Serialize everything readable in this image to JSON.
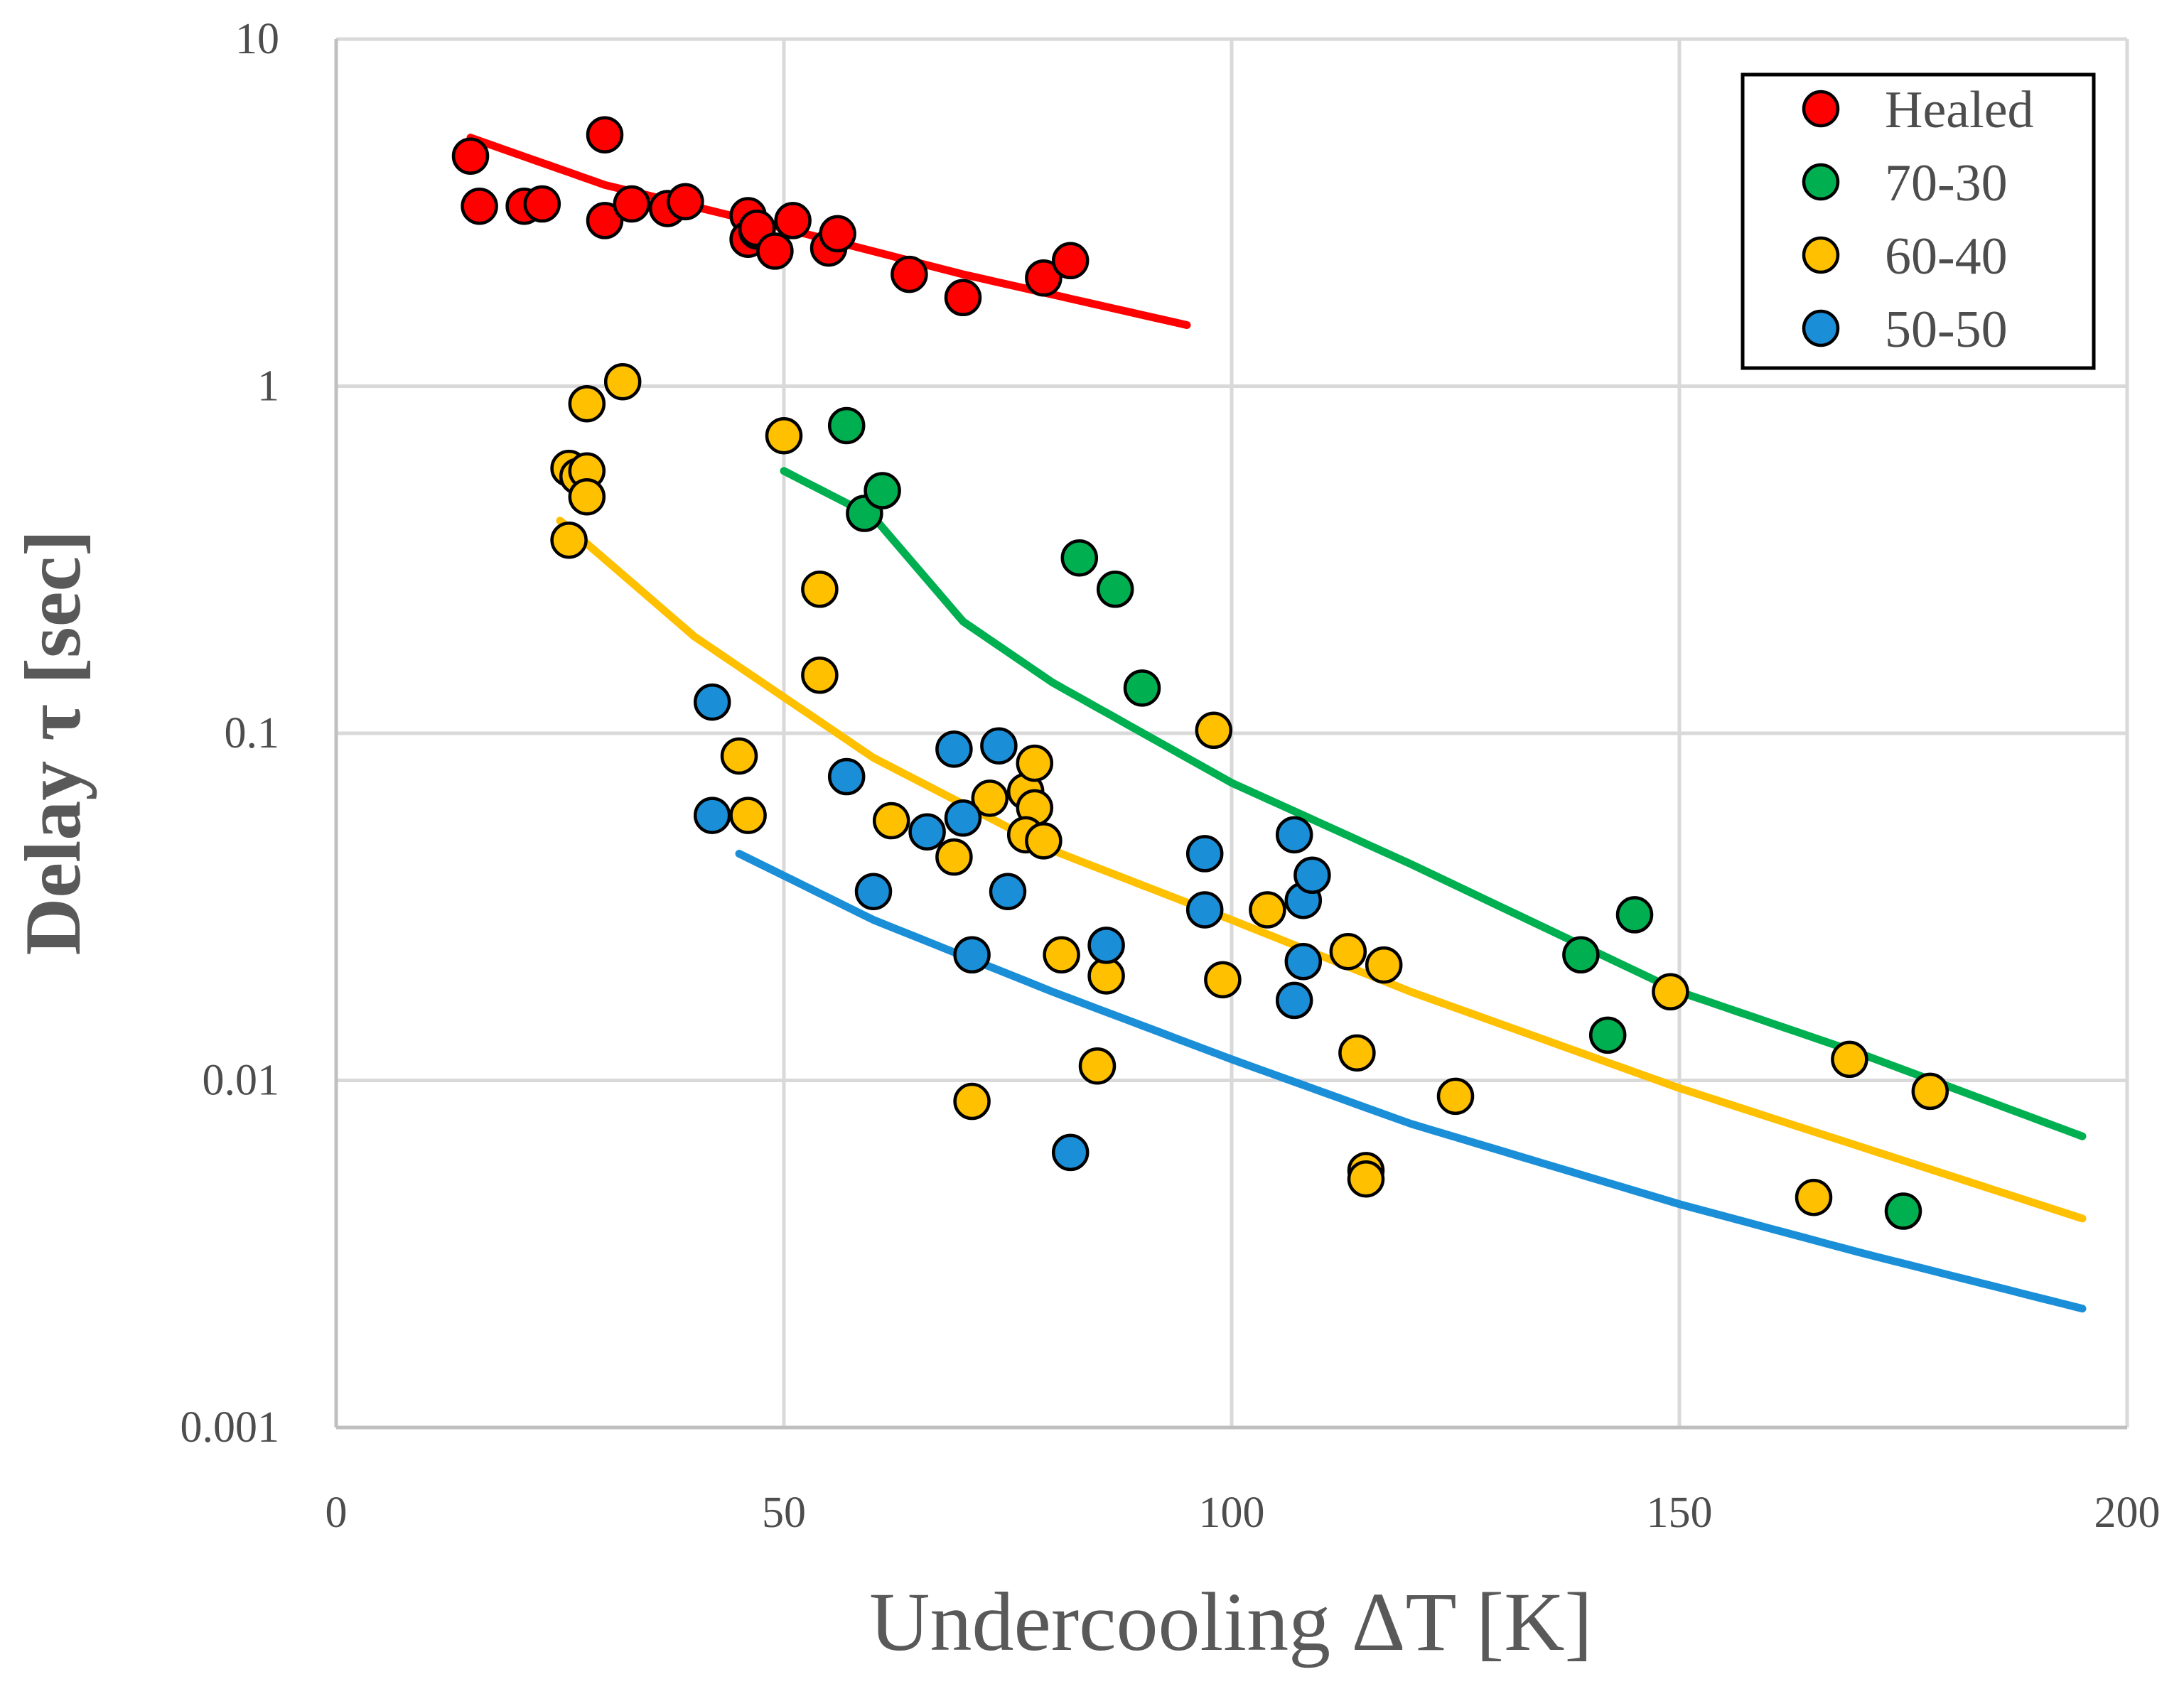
{
  "chart_data": {
    "type": "scatter",
    "title": "",
    "xlabel": "Undercooling ΔT [K]",
    "ylabel": "Delay τ [sec]",
    "xlim": [
      0,
      200
    ],
    "ylim": [
      0.001,
      10
    ],
    "yscale": "log",
    "grid": true,
    "legend_position": "top-right",
    "x_ticks": [
      {
        "value": 0,
        "label": "0"
      },
      {
        "value": 50,
        "label": "50"
      },
      {
        "value": 100,
        "label": "100"
      },
      {
        "value": 150,
        "label": "150"
      },
      {
        "value": 200,
        "label": "200"
      }
    ],
    "y_ticks": [
      {
        "value": 10,
        "label": "10"
      },
      {
        "value": 1,
        "label": "1"
      },
      {
        "value": 0.1,
        "label": "0.1"
      },
      {
        "value": 0.01,
        "label": "0.01"
      },
      {
        "value": 0.001,
        "label": "0.001"
      }
    ],
    "series": [
      {
        "name": "Healed",
        "color": "#ff0000",
        "points": [
          [
            15,
            4.6
          ],
          [
            16,
            3.3
          ],
          [
            21,
            3.3
          ],
          [
            23,
            3.35
          ],
          [
            30,
            5.3
          ],
          [
            30,
            3.0
          ],
          [
            33,
            3.35
          ],
          [
            37,
            3.25
          ],
          [
            39,
            3.4
          ],
          [
            46,
            3.1
          ],
          [
            46,
            2.65
          ],
          [
            47,
            2.8
          ],
          [
            47,
            2.85
          ],
          [
            49,
            2.45
          ],
          [
            51,
            3.0
          ],
          [
            55,
            2.5
          ],
          [
            56,
            2.75
          ],
          [
            64,
            2.1
          ],
          [
            70,
            1.8
          ],
          [
            79,
            2.05
          ],
          [
            82,
            2.3
          ]
        ],
        "fit": [
          [
            15,
            5.2
          ],
          [
            30,
            3.8
          ],
          [
            50,
            2.85
          ],
          [
            70,
            2.1
          ],
          [
            95,
            1.5
          ]
        ]
      },
      {
        "name": "70-30",
        "color": "#00b050",
        "points": [
          [
            57,
            0.77
          ],
          [
            59,
            0.43
          ],
          [
            61,
            0.5
          ],
          [
            83,
            0.32
          ],
          [
            87,
            0.26
          ],
          [
            90,
            0.135
          ],
          [
            139,
            0.023
          ],
          [
            142,
            0.0135
          ],
          [
            145,
            0.03
          ],
          [
            175,
            0.0042
          ]
        ],
        "fit": [
          [
            50,
            0.57
          ],
          [
            60,
            0.42
          ],
          [
            70,
            0.21
          ],
          [
            80,
            0.14
          ],
          [
            100,
            0.072
          ],
          [
            120,
            0.042
          ],
          [
            150,
            0.018
          ],
          [
            170,
            0.012
          ],
          [
            195,
            0.0069
          ]
        ]
      },
      {
        "name": "60-40",
        "color": "#ffc000",
        "points": [
          [
            26,
            0.58
          ],
          [
            27,
            0.55
          ],
          [
            28,
            0.57
          ],
          [
            28,
            0.89
          ],
          [
            28,
            0.48
          ],
          [
            26,
            0.36
          ],
          [
            32,
            1.03
          ],
          [
            50,
            0.72
          ],
          [
            54,
            0.26
          ],
          [
            54,
            0.147
          ],
          [
            45,
            0.086
          ],
          [
            46,
            0.058
          ],
          [
            62,
            0.056
          ],
          [
            69,
            0.044
          ],
          [
            73,
            0.065
          ],
          [
            77,
            0.068
          ],
          [
            78,
            0.082
          ],
          [
            78,
            0.061
          ],
          [
            77,
            0.051
          ],
          [
            79,
            0.049
          ],
          [
            81,
            0.023
          ],
          [
            86,
            0.02
          ],
          [
            85,
            0.011
          ],
          [
            71,
            0.0087
          ],
          [
            98,
            0.102
          ],
          [
            99,
            0.0195
          ],
          [
            104,
            0.031
          ],
          [
            113,
            0.0235
          ],
          [
            114,
            0.012
          ],
          [
            117,
            0.0215
          ],
          [
            115,
            0.0055
          ],
          [
            115,
            0.0052
          ],
          [
            125,
            0.009
          ],
          [
            149,
            0.018
          ],
          [
            165,
            0.0046
          ],
          [
            169,
            0.0115
          ],
          [
            178,
            0.0093
          ]
        ],
        "fit": [
          [
            25,
            0.41
          ],
          [
            40,
            0.19
          ],
          [
            60,
            0.085
          ],
          [
            80,
            0.046
          ],
          [
            100,
            0.029
          ],
          [
            120,
            0.018
          ],
          [
            150,
            0.0095
          ],
          [
            195,
            0.004
          ]
        ]
      },
      {
        "name": "50-50",
        "color": "#1a8fd8",
        "points": [
          [
            42,
            0.123
          ],
          [
            42,
            0.058
          ],
          [
            57,
            0.075
          ],
          [
            60,
            0.035
          ],
          [
            66,
            0.052
          ],
          [
            69,
            0.09
          ],
          [
            70,
            0.057
          ],
          [
            71,
            0.023
          ],
          [
            74,
            0.092
          ],
          [
            75,
            0.035
          ],
          [
            82,
            0.0062
          ],
          [
            86,
            0.0245
          ],
          [
            97,
            0.045
          ],
          [
            97,
            0.031
          ],
          [
            107,
            0.051
          ],
          [
            107,
            0.017
          ],
          [
            108,
            0.033
          ],
          [
            108,
            0.022
          ],
          [
            109,
            0.039
          ]
        ],
        "fit": [
          [
            45,
            0.045
          ],
          [
            60,
            0.029
          ],
          [
            80,
            0.018
          ],
          [
            100,
            0.0115
          ],
          [
            120,
            0.0075
          ],
          [
            150,
            0.0044
          ],
          [
            170,
            0.0032
          ],
          [
            195,
            0.0022
          ]
        ]
      }
    ]
  }
}
